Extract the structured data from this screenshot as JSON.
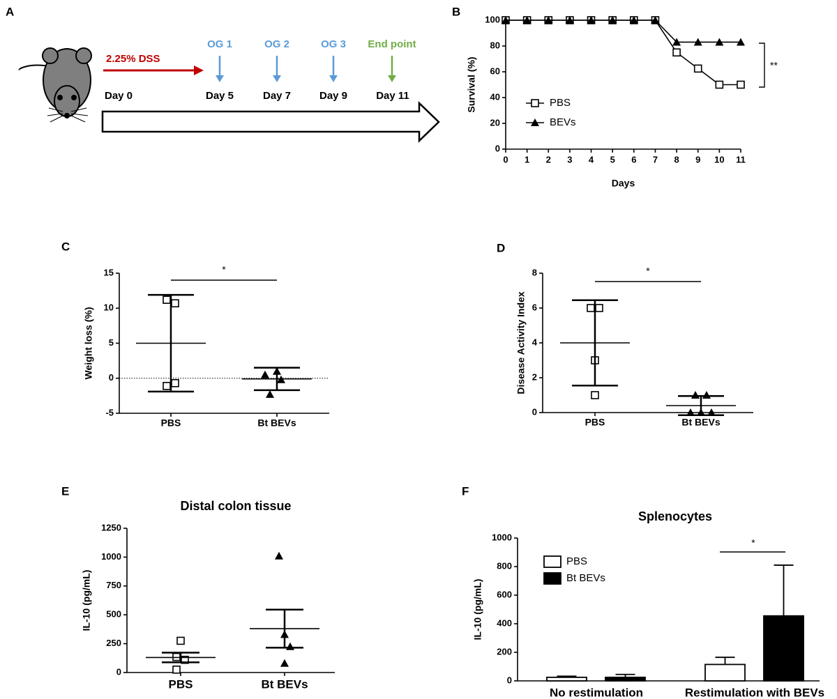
{
  "timeline": {
    "label": "A",
    "treatment": "2.25% DSS",
    "gavages": [
      "OG 1",
      "OG 2",
      "OG 3"
    ],
    "end": "End point",
    "days": [
      "Day 0",
      "Day 5",
      "Day 7",
      "Day 9",
      "Day 11"
    ]
  },
  "chart_data": [
    {
      "type": "line",
      "label": "B",
      "xlabel": "Days",
      "ylabel": "Survival (%)",
      "x": [
        0,
        1,
        2,
        3,
        4,
        5,
        6,
        7,
        8,
        9,
        10,
        11
      ],
      "xlim": [
        0,
        11
      ],
      "xticks": [
        0,
        1,
        2,
        3,
        4,
        5,
        6,
        7,
        8,
        9,
        10,
        11
      ],
      "ylim": [
        0,
        100
      ],
      "yticks": [
        0,
        20,
        40,
        60,
        80,
        100
      ],
      "series": [
        {
          "name": "PBS",
          "color": "#000000",
          "marker": "square",
          "values": [
            100,
            100,
            100,
            100,
            100,
            100,
            100,
            100,
            75,
            62.5,
            50,
            50
          ]
        },
        {
          "name": "BEVs",
          "color": "#000000",
          "marker": "triangle",
          "values": [
            100,
            100,
            100,
            100,
            100,
            100,
            100,
            100,
            83,
            83,
            83,
            83
          ]
        }
      ],
      "annotation": "**"
    },
    {
      "type": "dot",
      "label": "C",
      "ylabel": "Weight loss (%)",
      "categories": [
        "PBS",
        "Bt BEVs"
      ],
      "markers": [
        "square",
        "triangle"
      ],
      "points": [
        [
          11.2,
          10.7,
          -1.1,
          -0.7
        ],
        [
          0.5,
          1.0,
          -0.2,
          -2.3
        ]
      ],
      "mean": [
        5,
        -0.1
      ],
      "error": [
        6.9,
        1.6
      ],
      "ylim": [
        -5,
        15
      ],
      "yticks": [
        -5,
        0,
        5,
        10,
        15
      ],
      "hline": 0,
      "annotation": "*"
    },
    {
      "type": "dot",
      "label": "D",
      "ylabel": "Disease Activity Index",
      "categories": [
        "PBS",
        "Bt BEVs"
      ],
      "markers": [
        "square",
        "triangle"
      ],
      "points": [
        [
          6,
          6,
          3,
          1
        ],
        [
          1,
          1,
          0,
          0,
          0
        ]
      ],
      "mean": [
        4,
        0.4
      ],
      "error": [
        2.45,
        0.55
      ],
      "ylim": [
        0,
        8
      ],
      "yticks": [
        0,
        2,
        4,
        6,
        8
      ],
      "annotation": "*"
    },
    {
      "type": "dot",
      "label": "E",
      "title": "Distal colon tissue",
      "ylabel": "IL-10 (pg/mL)",
      "categories": [
        "PBS",
        "Bt BEVs"
      ],
      "markers": [
        "square",
        "triangle"
      ],
      "points": [
        [
          275,
          135,
          110,
          25
        ],
        [
          1010,
          330,
          225,
          80
        ]
      ],
      "mean": [
        130,
        380
      ],
      "error": [
        42,
        165
      ],
      "ylim": [
        0,
        1250
      ],
      "yticks": [
        0,
        250,
        500,
        750,
        1000,
        1250
      ]
    },
    {
      "type": "bar",
      "label": "F",
      "title": "Splenocytes",
      "ylabel": "IL-10 (pg/mL)",
      "categories": [
        "No restimulation",
        "Restimulation with BEVs"
      ],
      "series": [
        {
          "name": "PBS",
          "color": "#ffffff",
          "values": [
            25,
            115
          ],
          "error": [
            8,
            50
          ]
        },
        {
          "name": "Bt BEVs",
          "color": "#000000",
          "values": [
            25,
            455
          ],
          "error": [
            20,
            355
          ]
        }
      ],
      "ylim": [
        0,
        1000
      ],
      "yticks": [
        0,
        200,
        400,
        600,
        800,
        1000
      ],
      "annotation": "*"
    }
  ]
}
